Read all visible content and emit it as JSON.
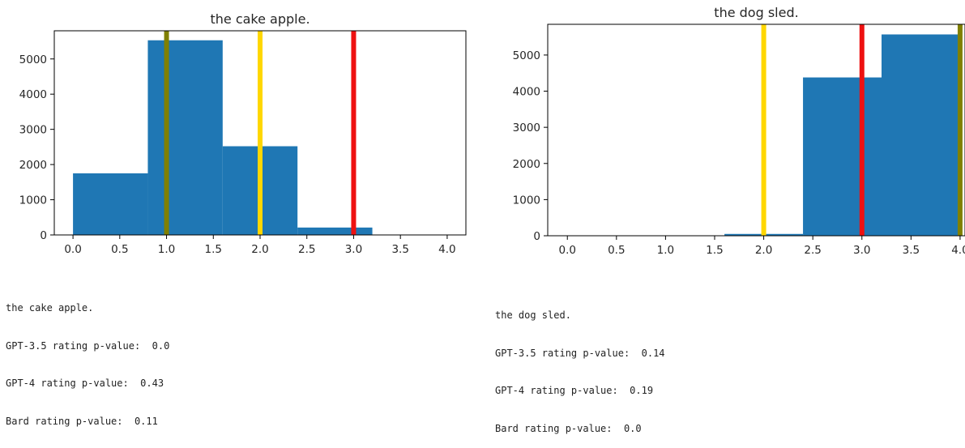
{
  "colors": {
    "bar": "#1f77b4",
    "gpt35_line": "#ee1111",
    "gpt4_line": "#ffd700",
    "bard_line": "#808000"
  },
  "panels": [
    {
      "caption": {
        "title": "the cake apple.",
        "gpt35": "GPT-3.5 rating p-value:  0.0",
        "gpt4": "GPT-4 rating p-value:  0.43",
        "bard": "Bard rating p-value:  0.11"
      }
    },
    {
      "caption": {
        "title": "the dog sled.",
        "gpt35": "GPT-3.5 rating p-value:  0.14",
        "gpt4": "GPT-4 rating p-value:  0.19",
        "bard": "Bard rating p-value:  0.0"
      }
    }
  ],
  "chart_data": [
    {
      "type": "bar",
      "title": "the cake apple.",
      "xlim": [
        -0.2,
        4.2
      ],
      "ylim": [
        0,
        5800
      ],
      "xticks": [
        0.0,
        0.5,
        1.0,
        1.5,
        2.0,
        2.5,
        3.0,
        3.5,
        4.0
      ],
      "xtick_labels": [
        "0.0",
        "0.5",
        "1.0",
        "1.5",
        "2.0",
        "2.5",
        "3.0",
        "3.5",
        "4.0"
      ],
      "yticks": [
        0,
        1000,
        2000,
        3000,
        4000,
        5000
      ],
      "ytick_labels": [
        "0",
        "1000",
        "2000",
        "3000",
        "4000",
        "5000"
      ],
      "bins": [
        {
          "x0": 0.0,
          "x1": 0.8,
          "value": 1750
        },
        {
          "x0": 0.8,
          "x1": 1.6,
          "value": 5530
        },
        {
          "x0": 1.6,
          "x1": 2.4,
          "value": 2520
        },
        {
          "x0": 2.4,
          "x1": 3.2,
          "value": 210
        },
        {
          "x0": 3.2,
          "x1": 4.0,
          "value": 0
        }
      ],
      "vlines": [
        {
          "x": 3.0,
          "color": "#ee1111"
        },
        {
          "x": 2.0,
          "color": "#ffd700"
        },
        {
          "x": 1.0,
          "color": "#808000"
        }
      ],
      "grid": false
    },
    {
      "type": "bar",
      "title": "the dog sled.",
      "xlim": [
        -0.2,
        4.05
      ],
      "ylim": [
        0,
        5850
      ],
      "xticks": [
        0.0,
        0.5,
        1.0,
        1.5,
        2.0,
        2.5,
        3.0,
        3.5,
        4.0
      ],
      "xtick_labels": [
        "0.0",
        "0.5",
        "1.0",
        "1.5",
        "2.0",
        "2.5",
        "3.0",
        "3.5",
        "4.0"
      ],
      "yticks": [
        0,
        1000,
        2000,
        3000,
        4000,
        5000
      ],
      "ytick_labels": [
        "0",
        "1000",
        "2000",
        "3000",
        "4000",
        "5000"
      ],
      "bins": [
        {
          "x0": 0.0,
          "x1": 0.8,
          "value": 0
        },
        {
          "x0": 0.8,
          "x1": 1.6,
          "value": 0
        },
        {
          "x0": 1.6,
          "x1": 2.4,
          "value": 50
        },
        {
          "x0": 2.4,
          "x1": 3.2,
          "value": 4380
        },
        {
          "x0": 3.2,
          "x1": 4.0,
          "value": 5570
        }
      ],
      "vlines": [
        {
          "x": 3.0,
          "color": "#ee1111"
        },
        {
          "x": 2.0,
          "color": "#ffd700"
        },
        {
          "x": 4.0,
          "color": "#808000"
        }
      ],
      "grid": false
    }
  ]
}
